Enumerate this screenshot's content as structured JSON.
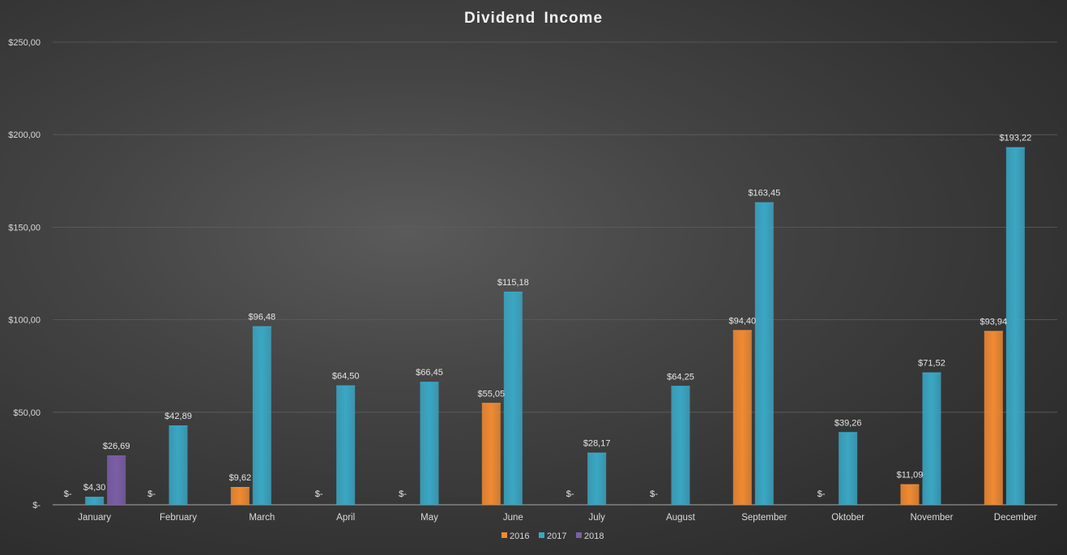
{
  "chart_data": {
    "type": "bar",
    "title": "Dividend Income",
    "xlabel": "",
    "ylabel": "",
    "ylim": [
      0,
      250
    ],
    "yticks": [
      0,
      50,
      100,
      150,
      200,
      250
    ],
    "ytick_labels": [
      "$-",
      "$50,00",
      "$100,00",
      "$150,00",
      "$200,00",
      "$250,00"
    ],
    "grid": true,
    "legend_position": "bottom",
    "categories": [
      "January",
      "February",
      "March",
      "April",
      "May",
      "June",
      "July",
      "August",
      "September",
      "Oktober",
      "November",
      "December"
    ],
    "series": [
      {
        "name": "2016",
        "color": "#f08a32",
        "values": [
          0,
          0,
          9.62,
          0,
          0,
          55.05,
          0,
          0,
          94.4,
          0,
          11.09,
          93.94
        ],
        "labels": [
          "$-",
          "$-",
          "$9,62",
          "$-",
          "$-",
          "$55,05",
          "$-",
          "$-",
          "$94,40",
          "$-",
          "$11,09",
          "$93,94"
        ]
      },
      {
        "name": "2017",
        "color": "#3aa7c4",
        "values": [
          4.3,
          42.89,
          96.48,
          64.5,
          66.45,
          115.18,
          28.17,
          64.25,
          163.45,
          39.26,
          71.52,
          193.22
        ],
        "labels": [
          "$4,30",
          "$42,89",
          "$96,48",
          "$64,50",
          "$66,45",
          "$115,18",
          "$28,17",
          "$64,25",
          "$163,45",
          "$39,26",
          "$71,52",
          "$193,22"
        ]
      },
      {
        "name": "2018",
        "color": "#7b5ea7",
        "values": [
          26.69,
          null,
          null,
          null,
          null,
          null,
          null,
          null,
          null,
          null,
          null,
          null
        ],
        "labels": [
          "$26,69",
          "",
          "",
          "",
          "",
          "",
          "",
          "",
          "",
          "",
          "",
          ""
        ]
      }
    ]
  }
}
